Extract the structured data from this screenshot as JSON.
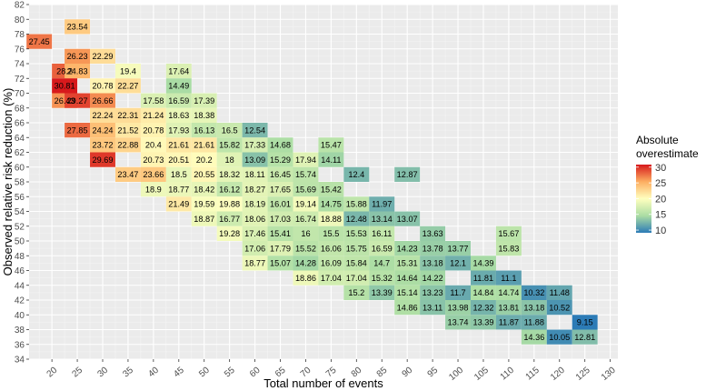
{
  "chart_data": {
    "type": "heatmap",
    "xlabel": "Total number of events",
    "ylabel": "Observed relative risk reduction (%)",
    "x_ticks": [
      20,
      25,
      30,
      35,
      40,
      45,
      50,
      55,
      60,
      65,
      70,
      75,
      80,
      85,
      90,
      95,
      100,
      105,
      110,
      115,
      120,
      125,
      130
    ],
    "y_ticks": [
      34,
      36,
      38,
      40,
      42,
      44,
      46,
      48,
      50,
      52,
      54,
      56,
      58,
      60,
      62,
      64,
      66,
      68,
      70,
      72,
      74,
      76,
      78,
      80,
      82
    ],
    "xlim": [
      15.5,
      131.5
    ],
    "ylim": [
      34,
      82
    ],
    "legend": {
      "title_line1": "Absolute",
      "title_line2": "overestimate",
      "ticks": [
        10,
        15,
        20,
        25,
        30
      ],
      "range": [
        9.15,
        30.81
      ],
      "placement": "right"
    },
    "cells": [
      [
        17.5,
        77,
        27.45
      ],
      [
        25,
        79,
        23.54
      ],
      [
        25,
        75,
        26.23
      ],
      [
        30,
        75,
        22.29
      ],
      [
        22.5,
        73,
        28.2
      ],
      [
        25,
        73,
        24.83
      ],
      [
        35,
        73,
        19.4
      ],
      [
        45,
        73,
        17.64
      ],
      [
        22.5,
        71,
        30.81
      ],
      [
        30,
        71,
        20.78
      ],
      [
        35,
        71,
        22.27
      ],
      [
        45,
        71,
        14.49
      ],
      [
        22.5,
        69,
        26.43
      ],
      [
        25,
        69,
        29.27
      ],
      [
        30,
        69,
        26.66
      ],
      [
        40,
        69,
        17.58
      ],
      [
        45,
        69,
        16.59
      ],
      [
        50,
        69,
        17.39
      ],
      [
        30,
        67,
        22.24
      ],
      [
        35,
        67,
        22.31
      ],
      [
        40,
        67,
        21.24
      ],
      [
        45,
        67,
        18.63
      ],
      [
        50,
        67,
        18.38
      ],
      [
        25,
        65,
        27.85
      ],
      [
        30,
        65,
        24.24
      ],
      [
        35,
        65,
        21.52
      ],
      [
        40,
        65,
        20.78
      ],
      [
        45,
        65,
        17.93
      ],
      [
        50,
        65,
        16.13
      ],
      [
        55,
        65,
        16.5
      ],
      [
        60,
        65,
        12.54
      ],
      [
        30,
        63,
        23.72
      ],
      [
        35,
        63,
        22.88
      ],
      [
        40,
        63,
        20.4
      ],
      [
        45,
        63,
        21.61
      ],
      [
        50,
        63,
        21.61
      ],
      [
        55,
        63,
        15.82
      ],
      [
        60,
        63,
        17.33
      ],
      [
        65,
        63,
        14.68
      ],
      [
        75,
        63,
        15.47
      ],
      [
        30,
        61,
        29.69
      ],
      [
        40,
        61,
        20.73
      ],
      [
        45,
        61,
        20.51
      ],
      [
        50,
        61,
        20.2
      ],
      [
        55,
        61,
        18
      ],
      [
        60,
        61,
        13.09
      ],
      [
        65,
        61,
        15.29
      ],
      [
        70,
        61,
        17.94
      ],
      [
        75,
        61,
        14.11
      ],
      [
        35,
        59,
        23.47
      ],
      [
        40,
        59,
        23.66
      ],
      [
        45,
        59,
        18.5
      ],
      [
        50,
        59,
        20.55
      ],
      [
        55,
        59,
        18.32
      ],
      [
        60,
        59,
        18.11
      ],
      [
        65,
        59,
        16.45
      ],
      [
        70,
        59,
        15.74
      ],
      [
        80,
        59,
        12.4
      ],
      [
        90,
        59,
        12.87
      ],
      [
        40,
        57,
        18.9
      ],
      [
        45,
        57,
        18.77
      ],
      [
        50,
        57,
        18.42
      ],
      [
        55,
        57,
        16.12
      ],
      [
        60,
        57,
        18.27
      ],
      [
        65,
        57,
        17.65
      ],
      [
        70,
        57,
        15.69
      ],
      [
        75,
        57,
        15.42
      ],
      [
        45,
        55,
        21.49
      ],
      [
        50,
        55,
        19.59
      ],
      [
        55,
        55,
        19.88
      ],
      [
        60,
        55,
        18.19
      ],
      [
        65,
        55,
        16.01
      ],
      [
        70,
        55,
        19.14
      ],
      [
        75,
        55,
        14.75
      ],
      [
        80,
        55,
        15.88
      ],
      [
        85,
        55,
        11.97
      ],
      [
        50,
        53,
        18.87
      ],
      [
        55,
        53,
        16.77
      ],
      [
        60,
        53,
        18.06
      ],
      [
        65,
        53,
        17.03
      ],
      [
        70,
        53,
        16.74
      ],
      [
        75,
        53,
        18.88
      ],
      [
        80,
        53,
        12.48
      ],
      [
        85,
        53,
        13.14
      ],
      [
        90,
        53,
        13.07
      ],
      [
        55,
        51,
        19.28
      ],
      [
        60,
        51,
        17.46
      ],
      [
        65,
        51,
        15.41
      ],
      [
        70,
        51,
        16
      ],
      [
        75,
        51,
        15.5
      ],
      [
        80,
        51,
        15.53
      ],
      [
        85,
        51,
        16.11
      ],
      [
        95,
        51,
        13.63
      ],
      [
        110,
        51,
        15.67
      ],
      [
        60,
        49,
        17.06
      ],
      [
        65,
        49,
        17.79
      ],
      [
        70,
        49,
        15.52
      ],
      [
        75,
        49,
        16.06
      ],
      [
        80,
        49,
        15.75
      ],
      [
        85,
        49,
        16.59
      ],
      [
        90,
        49,
        14.23
      ],
      [
        95,
        49,
        13.78
      ],
      [
        100,
        49,
        13.77
      ],
      [
        110,
        49,
        15.83
      ],
      [
        60,
        47,
        18.77
      ],
      [
        65,
        47,
        15.07
      ],
      [
        70,
        47,
        14.28
      ],
      [
        75,
        47,
        16.09
      ],
      [
        80,
        47,
        15.84
      ],
      [
        85,
        47,
        14.7
      ],
      [
        90,
        47,
        15.31
      ],
      [
        95,
        47,
        13.18
      ],
      [
        100,
        47,
        12.1
      ],
      [
        105,
        47,
        14.39
      ],
      [
        70,
        45,
        18.86
      ],
      [
        75,
        45,
        17.04
      ],
      [
        80,
        45,
        17.04
      ],
      [
        85,
        45,
        15.32
      ],
      [
        90,
        45,
        14.64
      ],
      [
        95,
        45,
        14.22
      ],
      [
        105,
        45,
        11.81
      ],
      [
        110,
        45,
        11.1
      ],
      [
        80,
        43,
        15.2
      ],
      [
        85,
        43,
        13.39
      ],
      [
        90,
        43,
        15.14
      ],
      [
        95,
        43,
        13.23
      ],
      [
        100,
        43,
        11.7
      ],
      [
        105,
        43,
        14.84
      ],
      [
        110,
        43,
        14.74
      ],
      [
        115,
        43,
        10.32
      ],
      [
        120,
        43,
        11.48
      ],
      [
        90,
        41,
        14.86
      ],
      [
        95,
        41,
        13.11
      ],
      [
        100,
        41,
        13.98
      ],
      [
        105,
        41,
        12.32
      ],
      [
        110,
        41,
        13.81
      ],
      [
        115,
        41,
        13.18
      ],
      [
        120,
        41,
        10.52
      ],
      [
        100,
        39,
        13.74
      ],
      [
        105,
        39,
        13.39
      ],
      [
        110,
        39,
        11.87
      ],
      [
        115,
        39,
        11.88
      ],
      [
        125,
        39,
        9.15
      ],
      [
        115,
        37,
        14.36
      ],
      [
        120,
        37,
        10.05
      ],
      [
        125,
        37,
        12.81
      ]
    ]
  }
}
